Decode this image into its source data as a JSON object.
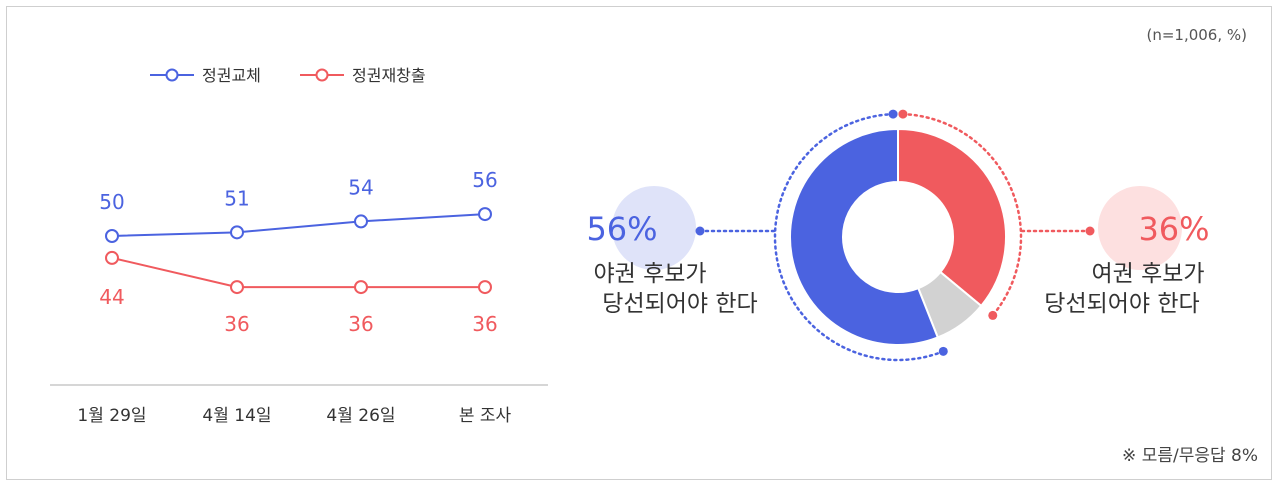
{
  "sample_note": "(n=1,006, %)",
  "footnote": "※ 모름/무응답 8%",
  "colors": {
    "blue": "#4b63e0",
    "red": "#f05a5e",
    "gray": "#d2d2d2",
    "text": "#333333"
  },
  "chart_data": [
    {
      "type": "line",
      "categories": [
        "1월 29일",
        "4월 14일",
        "4월 26일",
        "본 조사"
      ],
      "series": [
        {
          "name": "정권교체",
          "values": [
            50,
            51,
            54,
            56
          ],
          "color": "#4b63e0"
        },
        {
          "name": "정권재창출",
          "values": [
            44,
            36,
            36,
            36
          ],
          "color": "#f05a5e"
        }
      ],
      "legend_position": "top-left",
      "grid": false
    },
    {
      "type": "pie",
      "donut": true,
      "slices": [
        {
          "label": "여권 후보가 당선되어야 한다",
          "value": 36,
          "display": "36%",
          "color": "#f05a5e"
        },
        {
          "label": "모름/무응답",
          "value": 8,
          "color": "#d2d2d2"
        },
        {
          "label": "야권 후보가 당선되어야 한다",
          "value": 56,
          "display": "56%",
          "color": "#4b63e0"
        }
      ],
      "callouts": {
        "left": {
          "percent": "56%",
          "line1": "야권 후보가",
          "line2": "당선되어야 한다"
        },
        "right": {
          "percent": "36%",
          "line1": "여권 후보가",
          "line2": "당선되어야 한다"
        }
      }
    }
  ]
}
